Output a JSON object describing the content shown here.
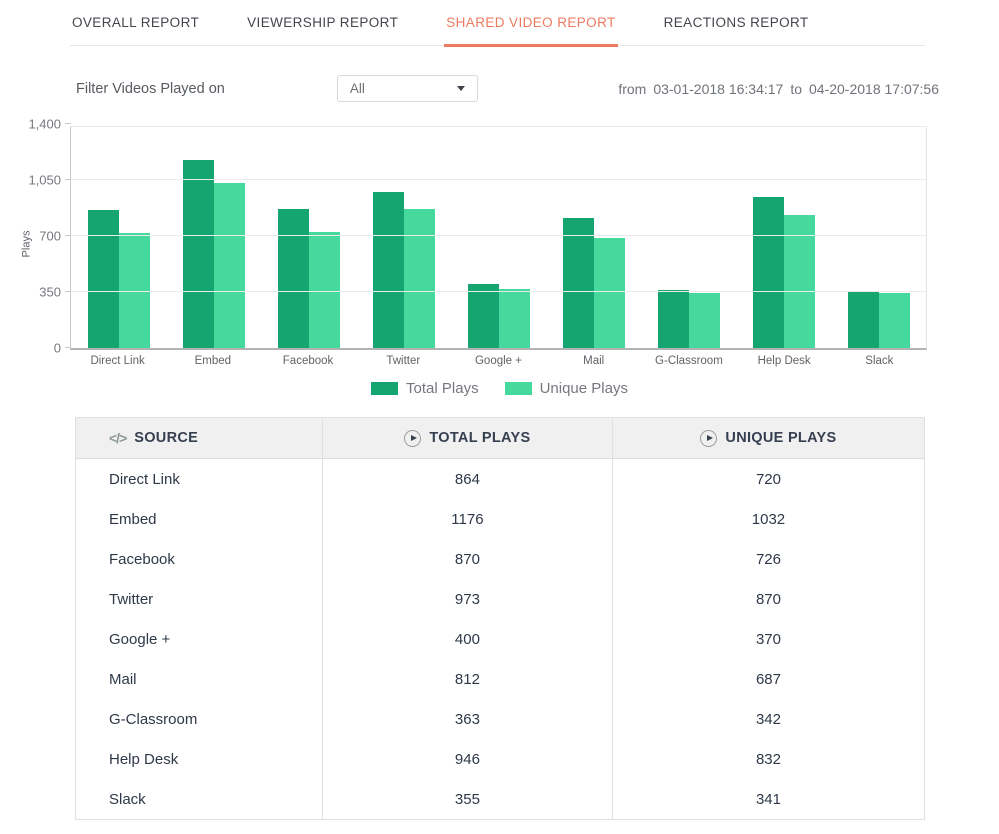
{
  "tabs": [
    {
      "label": "OVERALL REPORT",
      "active": false
    },
    {
      "label": "VIEWERSHIP REPORT",
      "active": false
    },
    {
      "label": "SHARED VIDEO REPORT",
      "active": true
    },
    {
      "label": "REACTIONS REPORT",
      "active": false
    }
  ],
  "filter": {
    "label": "Filter Videos Played on",
    "dropdown_value": "All"
  },
  "date_range": {
    "from_label": "from",
    "from_value": "03-01-2018 16:34:17",
    "to_label": "to",
    "to_value": "04-20-2018 17:07:56"
  },
  "chart_data": {
    "type": "bar",
    "categories": [
      "Direct Link",
      "Embed",
      "Facebook",
      "Twitter",
      "Google +",
      "Mail",
      "G-Classroom",
      "Help Desk",
      "Slack"
    ],
    "series": [
      {
        "name": "Total Plays",
        "color": "#14a570",
        "values": [
          864,
          1176,
          870,
          973,
          400,
          812,
          363,
          946,
          355
        ]
      },
      {
        "name": "Unique Plays",
        "color": "#45d99e",
        "values": [
          720,
          1032,
          726,
          870,
          370,
          687,
          342,
          832,
          341
        ]
      }
    ],
    "title": "",
    "xlabel": "",
    "ylabel": "Plays",
    "ylim": [
      0,
      1400
    ],
    "yticks": [
      {
        "value": 0,
        "label": "0"
      },
      {
        "value": 350,
        "label": "350"
      },
      {
        "value": 700,
        "label": "700"
      },
      {
        "value": 1050,
        "label": "1,050"
      },
      {
        "value": 1400,
        "label": "1,400"
      }
    ],
    "grid": true,
    "legend_position": "bottom"
  },
  "table": {
    "columns": [
      "SOURCE",
      "TOTAL PLAYS",
      "UNIQUE PLAYS"
    ],
    "rows": [
      {
        "source": "Direct Link",
        "total": "864",
        "unique": "720"
      },
      {
        "source": "Embed",
        "total": "1176",
        "unique": "1032"
      },
      {
        "source": "Facebook",
        "total": "870",
        "unique": "726"
      },
      {
        "source": "Twitter",
        "total": "973",
        "unique": "870"
      },
      {
        "source": "Google +",
        "total": "400",
        "unique": "370"
      },
      {
        "source": "Mail",
        "total": "812",
        "unique": "687"
      },
      {
        "source": "G-Classroom",
        "total": "363",
        "unique": "342"
      },
      {
        "source": "Help Desk",
        "total": "946",
        "unique": "832"
      },
      {
        "source": "Slack",
        "total": "355",
        "unique": "341"
      }
    ]
  }
}
